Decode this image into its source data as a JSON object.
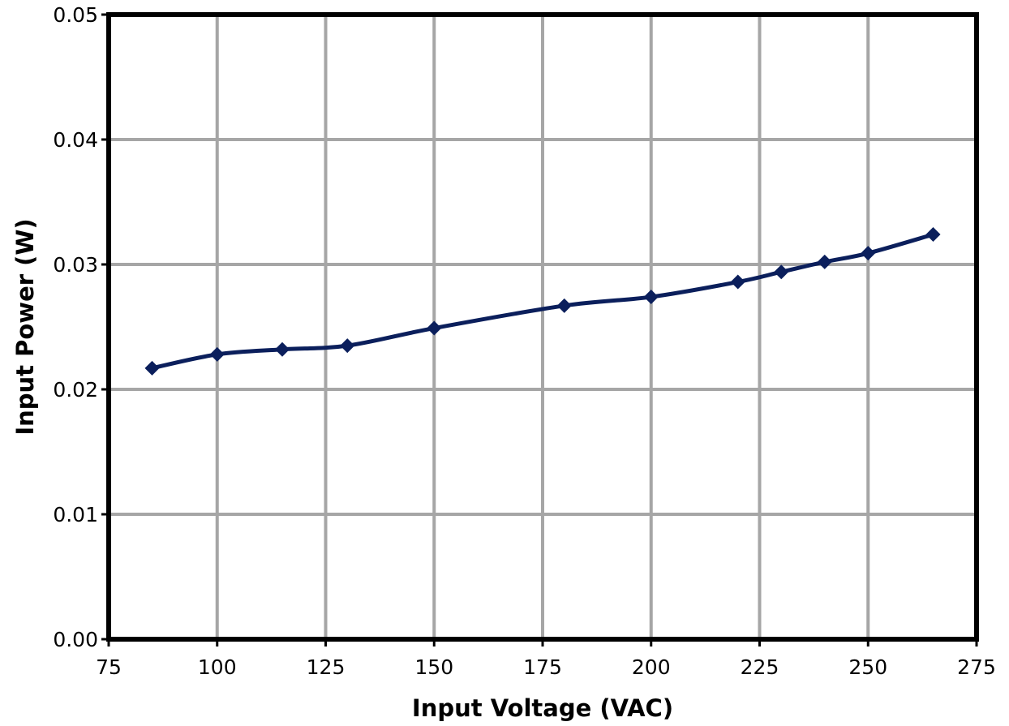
{
  "chart_data": {
    "type": "line",
    "title": "",
    "xlabel": "Input Voltage (VAC)",
    "ylabel": "Input Power (W)",
    "xlim": [
      75,
      275
    ],
    "ylim": [
      0,
      0.05
    ],
    "x_ticks": [
      "75",
      "100",
      "125",
      "150",
      "175",
      "200",
      "225",
      "250",
      "275"
    ],
    "y_ticks": [
      "0.00",
      "0.01",
      "0.02",
      "0.03",
      "0.04",
      "0.05"
    ],
    "grid": true,
    "legend": "none",
    "series": [
      {
        "color": "#0b1f5c",
        "marker": "diamond",
        "x": [
          85,
          100,
          115,
          130,
          150,
          180,
          200,
          220,
          230,
          240,
          250,
          265
        ],
        "y": [
          0.0217,
          0.0228,
          0.0232,
          0.0235,
          0.0249,
          0.0267,
          0.0274,
          0.0286,
          0.0294,
          0.0302,
          0.0309,
          0.0324
        ]
      }
    ],
    "colors": {
      "grid": "#a6a6a6",
      "frame": "#000000",
      "line": "#0b1f5c"
    }
  }
}
